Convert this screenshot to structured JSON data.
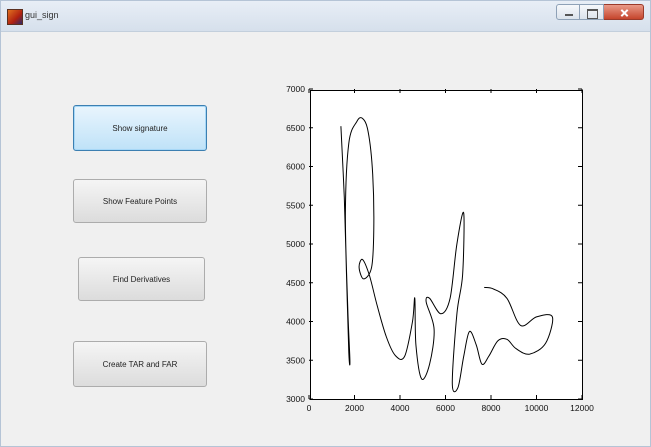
{
  "window": {
    "title": "gui_sign"
  },
  "buttons": {
    "show_signature": "Show signature",
    "show_feature_points": "Show Feature Points",
    "find_derivatives": "Find Derivatives",
    "create_tar_far": "Create TAR and FAR"
  },
  "chart_data": {
    "type": "line",
    "title": "",
    "xlabel": "",
    "ylabel": "",
    "xlim": [
      0,
      12000
    ],
    "ylim": [
      3000,
      7000
    ],
    "x_ticks": [
      0,
      2000,
      4000,
      6000,
      8000,
      10000,
      12000
    ],
    "y_ticks": [
      3000,
      3500,
      4000,
      4500,
      5000,
      5500,
      6000,
      6500,
      7000
    ],
    "x_tick_labels": [
      "0",
      "2000",
      "4000",
      "6000",
      "8000",
      "10000",
      "12000"
    ],
    "y_tick_labels": [
      "3000",
      "3500",
      "4000",
      "4500",
      "5000",
      "5500",
      "6000",
      "6500",
      "7000"
    ],
    "grid": false,
    "series": [
      {
        "color": "#000000",
        "points": [
          [
            1400,
            6520
          ],
          [
            1550,
            5600
          ],
          [
            1650,
            4600
          ],
          [
            1750,
            3600
          ],
          [
            1800,
            3500
          ],
          [
            1700,
            4200
          ],
          [
            1600,
            5400
          ],
          [
            1750,
            6300
          ],
          [
            2100,
            6580
          ],
          [
            2350,
            6620
          ],
          [
            2600,
            6450
          ],
          [
            2800,
            5900
          ],
          [
            2850,
            5200
          ],
          [
            2750,
            4700
          ],
          [
            2400,
            4550
          ],
          [
            2200,
            4700
          ],
          [
            2350,
            4800
          ],
          [
            2650,
            4600
          ],
          [
            3000,
            4200
          ],
          [
            3400,
            3800
          ],
          [
            3800,
            3560
          ],
          [
            4200,
            3550
          ],
          [
            4550,
            4000
          ],
          [
            4650,
            4300
          ],
          [
            4700,
            3700
          ],
          [
            4950,
            3260
          ],
          [
            5300,
            3450
          ],
          [
            5500,
            3900
          ],
          [
            5150,
            4250
          ],
          [
            5300,
            4300
          ],
          [
            5800,
            4100
          ],
          [
            6200,
            4300
          ],
          [
            6500,
            5000
          ],
          [
            6800,
            5400
          ],
          [
            6750,
            4600
          ],
          [
            6500,
            4100
          ],
          [
            6300,
            3200
          ],
          [
            6550,
            3150
          ],
          [
            6800,
            3550
          ],
          [
            7050,
            3870
          ],
          [
            7350,
            3700
          ],
          [
            7600,
            3450
          ],
          [
            7900,
            3550
          ],
          [
            8300,
            3750
          ],
          [
            8700,
            3770
          ],
          [
            9100,
            3650
          ],
          [
            9700,
            3580
          ],
          [
            10400,
            3720
          ],
          [
            10700,
            4060
          ],
          [
            10000,
            4060
          ],
          [
            9300,
            3950
          ],
          [
            8700,
            4300
          ],
          [
            8100,
            4420
          ],
          [
            7700,
            4440
          ]
        ]
      }
    ]
  }
}
